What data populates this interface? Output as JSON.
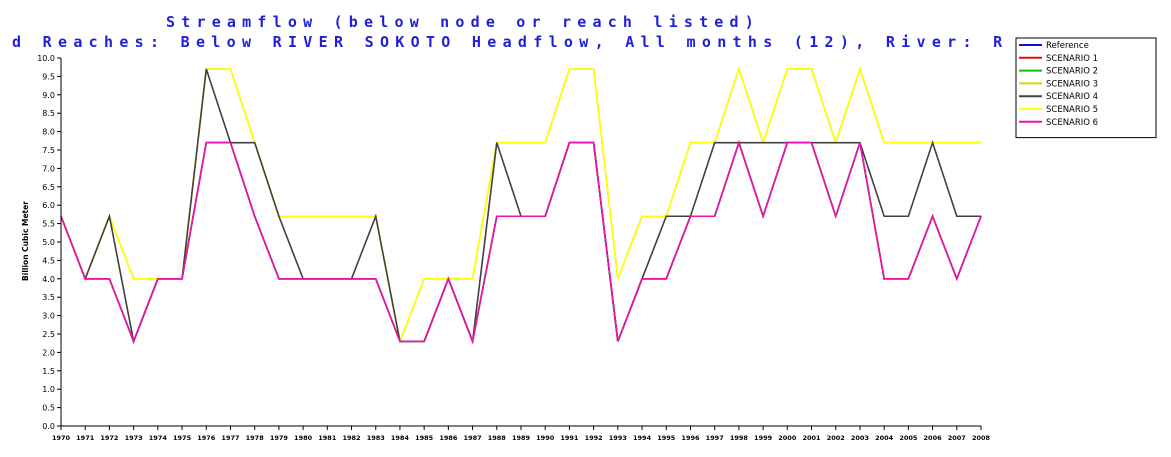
{
  "chart_data": {
    "type": "line",
    "title": "Streamflow (below node or reach listed)",
    "subtitle": "d Reaches: Below RIVER SOKOTO Headflow, All months (12), River: R",
    "ylabel": "Billion Cubic Meter",
    "xlabel": "",
    "ylim": [
      0,
      10
    ],
    "yticks": [
      "0.0",
      "0.5",
      "1.0",
      "1.5",
      "2.0",
      "2.5",
      "3.0",
      "3.5",
      "4.0",
      "4.5",
      "5.0",
      "5.5",
      "6.0",
      "6.5",
      "7.0",
      "7.5",
      "8.0",
      "8.5",
      "9.0",
      "9.5",
      "10.0"
    ],
    "x": [
      "1970",
      "1971",
      "1972",
      "1973",
      "1974",
      "1975",
      "1976",
      "1977",
      "1978",
      "1979",
      "1980",
      "1981",
      "1982",
      "1983",
      "1984",
      "1985",
      "1986",
      "1987",
      "1988",
      "1989",
      "1990",
      "1991",
      "1992",
      "1993",
      "1994",
      "1995",
      "1996",
      "1997",
      "1998",
      "1999",
      "2000",
      "2001",
      "2002",
      "2003",
      "2004",
      "2005",
      "2006",
      "2007",
      "2008"
    ],
    "grid": false,
    "legend_position": "top-right",
    "series": [
      {
        "name": "Reference",
        "color": "#1010d0",
        "values": [
          5.7,
          4.0,
          4.0,
          2.3,
          4.0,
          4.0,
          7.7,
          7.7,
          5.7,
          4.0,
          4.0,
          4.0,
          4.0,
          4.0,
          2.3,
          2.3,
          4.0,
          2.3,
          5.7,
          5.7,
          5.7,
          7.7,
          7.7,
          2.3,
          4.0,
          4.0,
          5.7,
          5.7,
          7.7,
          5.7,
          7.7,
          7.7,
          5.7,
          7.7,
          4.0,
          4.0,
          5.7,
          4.0,
          5.7
        ]
      },
      {
        "name": "SCENARIO 1",
        "color": "#e01010",
        "values": [
          5.7,
          4.0,
          4.0,
          2.3,
          4.0,
          4.0,
          7.7,
          7.7,
          5.7,
          4.0,
          4.0,
          4.0,
          4.0,
          4.0,
          2.3,
          2.3,
          4.0,
          2.3,
          5.7,
          5.7,
          5.7,
          7.7,
          7.7,
          2.3,
          4.0,
          4.0,
          5.7,
          5.7,
          7.7,
          5.7,
          7.7,
          7.7,
          5.7,
          7.7,
          4.0,
          4.0,
          5.7,
          4.0,
          5.7
        ]
      },
      {
        "name": "SCENARIO 2",
        "color": "#10c010",
        "values": [
          5.7,
          4.0,
          4.0,
          2.3,
          4.0,
          4.0,
          7.7,
          7.7,
          5.7,
          4.0,
          4.0,
          4.0,
          4.0,
          4.0,
          2.3,
          2.3,
          4.0,
          2.3,
          5.7,
          5.7,
          5.7,
          7.7,
          7.7,
          2.3,
          4.0,
          4.0,
          5.7,
          5.7,
          7.7,
          5.7,
          7.7,
          7.7,
          5.7,
          7.7,
          4.0,
          4.0,
          5.7,
          4.0,
          5.7
        ]
      },
      {
        "name": "SCENARIO 3",
        "color": "#e0d000",
        "values": [
          5.7,
          4.0,
          5.7,
          4.0,
          4.0,
          4.0,
          9.7,
          9.7,
          7.7,
          5.7,
          5.7,
          5.7,
          5.7,
          5.7,
          2.3,
          4.0,
          4.0,
          4.0,
          7.7,
          7.7,
          7.7,
          9.7,
          9.7,
          4.0,
          5.7,
          5.7,
          7.7,
          7.7,
          9.7,
          7.7,
          9.7,
          9.7,
          7.7,
          9.7,
          7.7,
          7.7,
          7.7,
          7.7,
          7.7
        ]
      },
      {
        "name": "SCENARIO 4",
        "color": "#404040",
        "values": [
          5.7,
          4.0,
          5.7,
          2.3,
          4.0,
          4.0,
          9.7,
          7.7,
          7.7,
          5.7,
          4.0,
          4.0,
          4.0,
          5.7,
          2.3,
          2.3,
          4.0,
          2.3,
          7.7,
          5.7,
          5.7,
          7.7,
          7.7,
          2.3,
          4.0,
          5.7,
          5.7,
          7.7,
          7.7,
          7.7,
          7.7,
          7.7,
          7.7,
          7.7,
          5.7,
          5.7,
          7.7,
          5.7,
          5.7
        ]
      },
      {
        "name": "SCENARIO 5",
        "color": "#ffff00",
        "values": [
          5.7,
          4.0,
          5.7,
          4.0,
          4.0,
          4.0,
          9.7,
          9.7,
          7.7,
          5.7,
          5.7,
          5.7,
          5.7,
          5.7,
          2.3,
          4.0,
          4.0,
          4.0,
          7.7,
          7.7,
          7.7,
          9.7,
          9.7,
          4.0,
          5.7,
          5.7,
          7.7,
          7.7,
          9.7,
          7.7,
          9.7,
          9.7,
          7.7,
          9.7,
          7.7,
          7.7,
          7.7,
          7.7,
          7.7
        ]
      },
      {
        "name": "SCENARIO 6",
        "color": "#ee10b0",
        "values": [
          5.7,
          4.0,
          4.0,
          2.3,
          4.0,
          4.0,
          7.7,
          7.7,
          5.7,
          4.0,
          4.0,
          4.0,
          4.0,
          4.0,
          2.3,
          2.3,
          4.0,
          2.3,
          5.7,
          5.7,
          5.7,
          7.7,
          7.7,
          2.3,
          4.0,
          4.0,
          5.7,
          5.7,
          7.7,
          5.7,
          7.7,
          7.7,
          5.7,
          7.7,
          4.0,
          4.0,
          5.7,
          4.0,
          5.7
        ]
      }
    ]
  }
}
